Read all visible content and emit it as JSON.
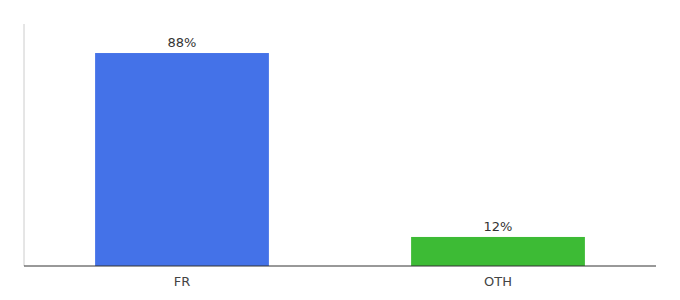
{
  "chart_data": {
    "type": "bar",
    "categories": [
      "FR",
      "OTH"
    ],
    "values": [
      88,
      12
    ],
    "value_labels": [
      "88%",
      "12%"
    ],
    "data_labels": true,
    "colors": [
      "#4472e8",
      "#3dbb35"
    ],
    "ylim": [
      0,
      100
    ],
    "grid": false,
    "tick_labels": "x"
  }
}
